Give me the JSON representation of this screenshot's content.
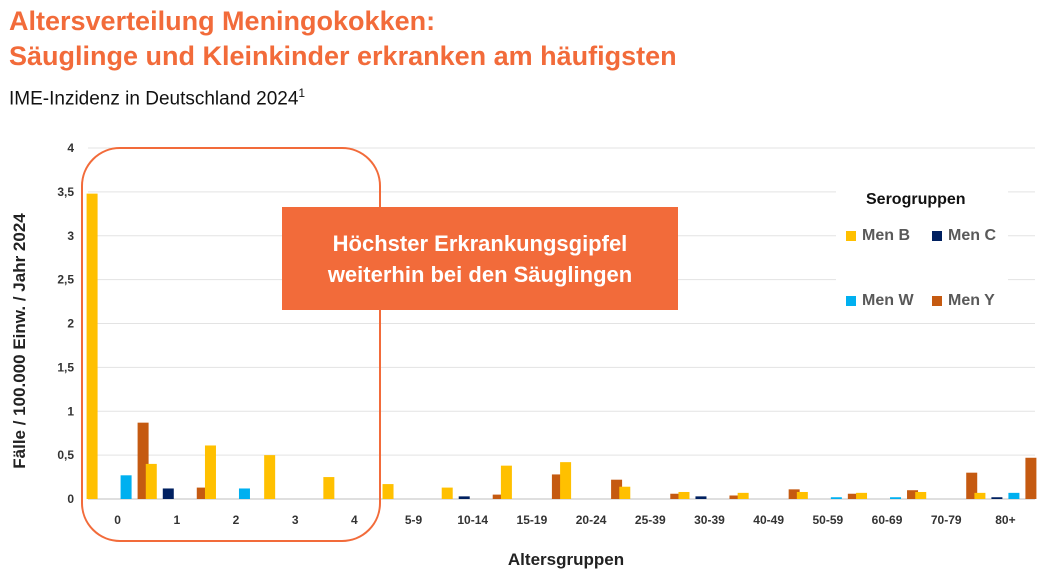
{
  "heading": {
    "line1": "Altersverteilung Meningokokken:",
    "line2": "Säuglinge und Kleinkinder erkranken am häufigsten",
    "subtitle": "IME-Inzidenz in Deutschland 2024",
    "footnote": "1"
  },
  "callout": {
    "line1": "Höchster Erkrankungsgipfel",
    "line2": "weiterhin bei den Säuglingen"
  },
  "colors": {
    "accent": "#f26b3a",
    "men_b": "#ffc000",
    "men_c": "#002060",
    "men_w": "#00b0f0",
    "men_y": "#c55a11"
  },
  "chart_data": {
    "type": "bar",
    "xlabel": "Altersgruppen",
    "ylabel": "Fälle / 100.000 Einw. / Jahr  2024",
    "ylim": [
      0,
      4
    ],
    "yticks": [
      "0",
      "0,5",
      "1",
      "1,5",
      "2",
      "2,5",
      "3",
      "3,5",
      "4"
    ],
    "grid": true,
    "legend_title": "Serogruppen",
    "legend_position": "right",
    "categories": [
      "0",
      "1",
      "2",
      "3",
      "4",
      "5-9",
      "10-14",
      "15-19",
      "20-24",
      "25-39",
      "30-39",
      "40-49",
      "50-59",
      "60-69",
      "70-79",
      "80+"
    ],
    "series": [
      {
        "name": "Men B",
        "color": "#ffc000",
        "values": [
          3.48,
          0.4,
          0.61,
          0.5,
          0.25,
          0.17,
          0.13,
          0.38,
          0.42,
          0.14,
          0.08,
          0.07,
          0.08,
          0.07,
          0.08,
          0.07
        ]
      },
      {
        "name": "Men C",
        "color": "#002060",
        "values": [
          0,
          0.12,
          0,
          0,
          0,
          0,
          0.03,
          0,
          0,
          0,
          0.03,
          0,
          0,
          0,
          0,
          0.02
        ]
      },
      {
        "name": "Men W",
        "color": "#00b0f0",
        "values": [
          0.27,
          0,
          0.12,
          0,
          0,
          0,
          0,
          0,
          0,
          0,
          0,
          0,
          0.02,
          0.02,
          0,
          0.07
        ]
      },
      {
        "name": "Men Y",
        "color": "#c55a11",
        "values": [
          0.87,
          0.13,
          0,
          0,
          0,
          0,
          0.05,
          0.28,
          0.22,
          0.06,
          0.04,
          0.11,
          0.06,
          0.1,
          0.3,
          0.47
        ]
      }
    ]
  }
}
